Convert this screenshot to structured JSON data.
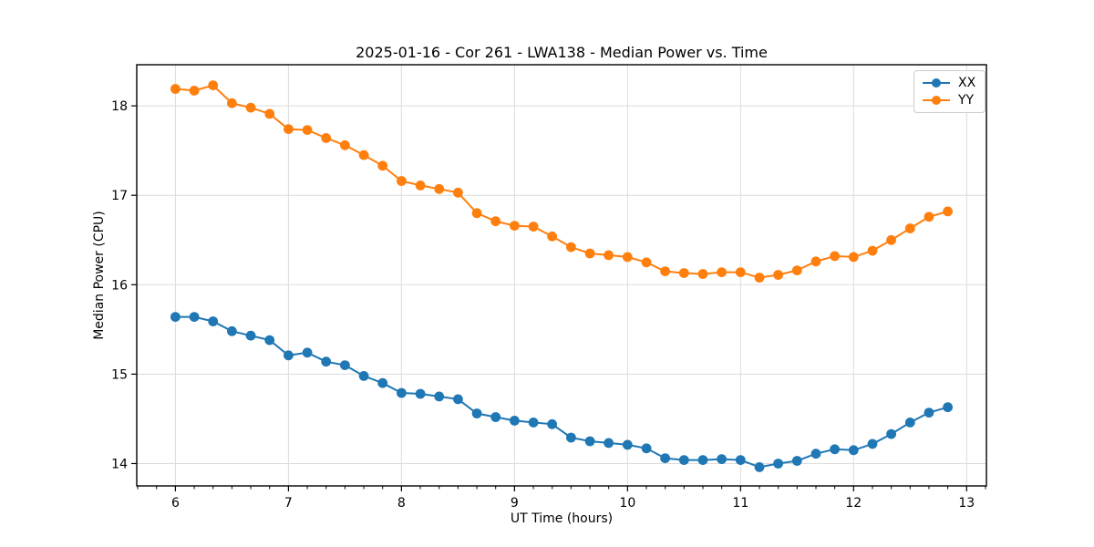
{
  "chart_data": {
    "type": "line",
    "title": "2025-01-16 - Cor 261 - LWA138 - Median Power vs. Time",
    "xlabel": "UT Time (hours)",
    "ylabel": "Median Power (CPU)",
    "xlim": [
      5.658,
      13.175
    ],
    "ylim": [
      13.75,
      18.46
    ],
    "xticks": [
      6,
      7,
      8,
      9,
      10,
      11,
      12,
      13
    ],
    "yticks": [
      14,
      15,
      16,
      17,
      18
    ],
    "x_minor_step": 0.1666667,
    "grid": true,
    "legend_position": "upper right",
    "colors": {
      "grid": "#dcdcdc",
      "spine": "#000000",
      "text": "#000000"
    },
    "x": [
      6.0,
      6.167,
      6.333,
      6.5,
      6.667,
      6.833,
      7.0,
      7.167,
      7.333,
      7.5,
      7.667,
      7.833,
      8.0,
      8.167,
      8.333,
      8.5,
      8.667,
      8.833,
      9.0,
      9.167,
      9.333,
      9.5,
      9.667,
      9.833,
      10.0,
      10.167,
      10.333,
      10.5,
      10.667,
      10.833,
      11.0,
      11.167,
      11.333,
      11.5,
      11.667,
      11.833,
      12.0,
      12.167,
      12.333,
      12.5,
      12.667,
      12.833
    ],
    "series": [
      {
        "name": "XX",
        "color": "#1f77b4",
        "values": [
          15.64,
          15.64,
          15.59,
          15.48,
          15.43,
          15.38,
          15.21,
          15.24,
          15.14,
          15.1,
          14.98,
          14.9,
          14.79,
          14.78,
          14.75,
          14.72,
          14.56,
          14.52,
          14.48,
          14.46,
          14.44,
          14.29,
          14.25,
          14.23,
          14.21,
          14.17,
          14.06,
          14.04,
          14.04,
          14.05,
          14.04,
          13.96,
          14.0,
          14.03,
          14.11,
          14.16,
          14.15,
          14.22,
          14.33,
          14.46,
          14.57,
          14.63
        ]
      },
      {
        "name": "YY",
        "color": "#ff7f0e",
        "values": [
          18.19,
          18.17,
          18.23,
          18.03,
          17.98,
          17.91,
          17.74,
          17.73,
          17.64,
          17.56,
          17.45,
          17.33,
          17.16,
          17.11,
          17.07,
          17.03,
          16.8,
          16.71,
          16.66,
          16.65,
          16.54,
          16.42,
          16.35,
          16.33,
          16.31,
          16.25,
          16.15,
          16.13,
          16.12,
          16.14,
          16.14,
          16.08,
          16.11,
          16.16,
          16.26,
          16.32,
          16.31,
          16.38,
          16.5,
          16.63,
          16.76,
          16.82
        ]
      }
    ]
  }
}
